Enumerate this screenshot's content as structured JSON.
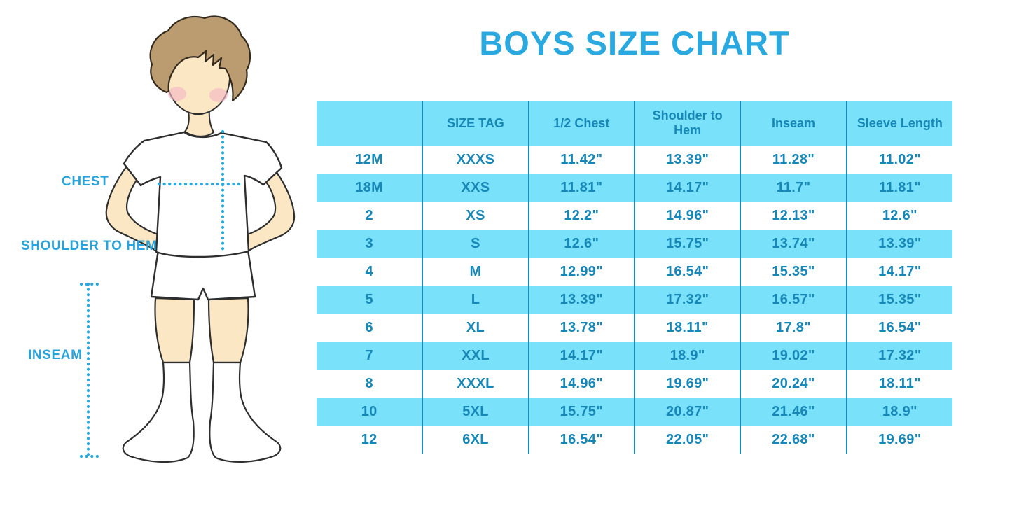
{
  "title": "BOYS SIZE CHART",
  "figure": {
    "chest_label": "CHEST",
    "shoulder_to_hem_label": "SHOULDER TO HEM",
    "inseam_label": "INSEAM"
  },
  "colors": {
    "title_blue": "#29a9e0",
    "label_blue": "#29a3dc",
    "table_text_blue": "#1787b8",
    "row_stripe_cyan": "#79e2fa",
    "column_divider_blue": "#1a8ab8",
    "dotted_measure_line": "#2aa9df",
    "skin": "#fbe7c4",
    "hair_brown": "#bb9c70",
    "blush_pink": "#f3b9c6",
    "illustration_outline": "#2e2e2e"
  },
  "chart_data": {
    "type": "table",
    "columns": [
      "",
      "SIZE TAG",
      "1/2 Chest",
      "Shoulder to Hem",
      "Inseam",
      "Sleeve Length"
    ],
    "rows": [
      [
        "12M",
        "XXXS",
        "11.42\"",
        "13.39\"",
        "11.28\"",
        "11.02\""
      ],
      [
        "18M",
        "XXS",
        "11.81\"",
        "14.17\"",
        "11.7\"",
        "11.81\""
      ],
      [
        "2",
        "XS",
        "12.2\"",
        "14.96\"",
        "12.13\"",
        "12.6\""
      ],
      [
        "3",
        "S",
        "12.6\"",
        "15.75\"",
        "13.74\"",
        "13.39\""
      ],
      [
        "4",
        "M",
        "12.99\"",
        "16.54\"",
        "15.35\"",
        "14.17\""
      ],
      [
        "5",
        "L",
        "13.39\"",
        "17.32\"",
        "16.57\"",
        "15.35\""
      ],
      [
        "6",
        "XL",
        "13.78\"",
        "18.11\"",
        "17.8\"",
        "16.54\""
      ],
      [
        "7",
        "XXL",
        "14.17\"",
        "18.9\"",
        "19.02\"",
        "17.32\""
      ],
      [
        "8",
        "XXXL",
        "14.96\"",
        "19.69\"",
        "20.24\"",
        "18.11\""
      ],
      [
        "10",
        "5XL",
        "15.75\"",
        "20.87\"",
        "21.46\"",
        "18.9\""
      ],
      [
        "12",
        "6XL",
        "16.54\"",
        "22.05\"",
        "22.68\"",
        "19.69\""
      ]
    ]
  }
}
